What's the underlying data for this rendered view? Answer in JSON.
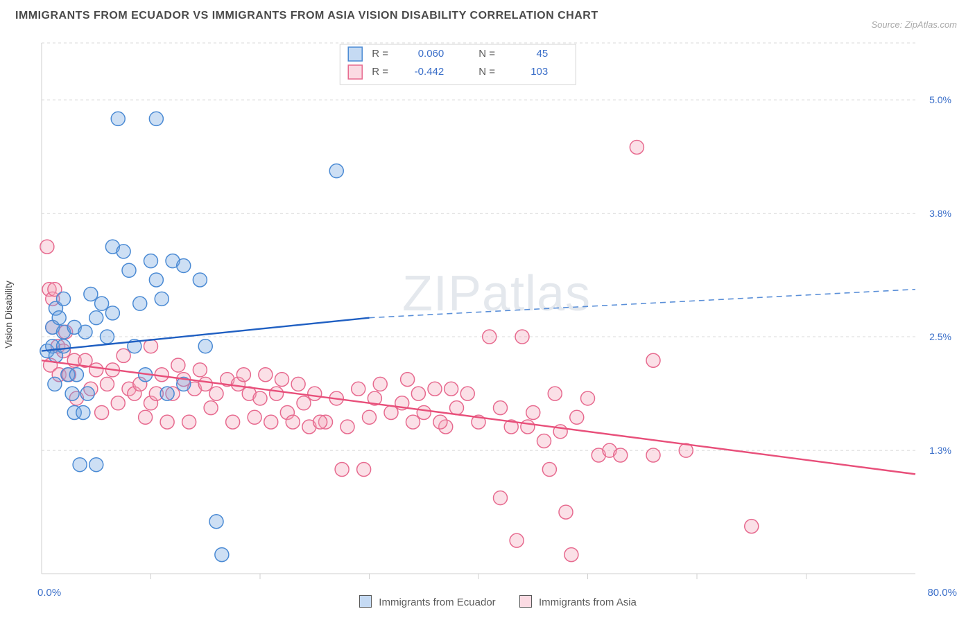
{
  "title": "IMMIGRANTS FROM ECUADOR VS IMMIGRANTS FROM ASIA VISION DISABILITY CORRELATION CHART",
  "source_label": "Source: ZipAtlas.com",
  "ylabel": "Vision Disability",
  "watermark": "ZIPatlas",
  "chart": {
    "type": "scatter",
    "xlim": [
      0,
      80
    ],
    "ylim": [
      0,
      5.6
    ],
    "xtick_min_label": "0.0%",
    "xtick_max_label": "80.0%",
    "xticks_major": [
      10,
      20,
      30,
      40,
      50,
      60,
      70
    ],
    "yticks": [
      {
        "v": 1.3,
        "label": "1.3%"
      },
      {
        "v": 2.5,
        "label": "2.5%"
      },
      {
        "v": 3.8,
        "label": "3.8%"
      },
      {
        "v": 5.0,
        "label": "5.0%"
      }
    ],
    "marker_radius": 10,
    "background_color": "#ffffff",
    "grid_color": "#d8d8d8"
  },
  "stats_legend": {
    "rows": [
      {
        "color": "blue",
        "r_label": "R =",
        "r": "0.060",
        "n_label": "N =",
        "n": "45"
      },
      {
        "color": "pink",
        "r_label": "R =",
        "r": "-0.442",
        "n_label": "N =",
        "n": "103"
      }
    ]
  },
  "series": {
    "s1": {
      "name": "Immigrants from Ecuador",
      "color_fill": "#6fa3e0",
      "color_stroke": "#4a8ad4",
      "trend": {
        "x1": 0,
        "y1": 2.35,
        "x_break": 30,
        "y_break": 2.7,
        "x2": 80,
        "y2": 3.0
      },
      "points": [
        [
          0.5,
          2.35
        ],
        [
          1.0,
          2.6
        ],
        [
          1.0,
          2.4
        ],
        [
          1.2,
          2.0
        ],
        [
          1.3,
          2.8
        ],
        [
          1.3,
          2.3
        ],
        [
          1.6,
          2.7
        ],
        [
          2.0,
          2.4
        ],
        [
          2.0,
          2.55
        ],
        [
          3.0,
          2.6
        ],
        [
          2.4,
          2.1
        ],
        [
          2.8,
          1.9
        ],
        [
          3.2,
          2.1
        ],
        [
          3.0,
          1.7
        ],
        [
          3.8,
          1.7
        ],
        [
          4.2,
          1.9
        ],
        [
          5.0,
          2.7
        ],
        [
          6.0,
          2.5
        ],
        [
          6.5,
          3.45
        ],
        [
          7.5,
          3.4
        ],
        [
          7.0,
          4.8
        ],
        [
          10.5,
          4.8
        ],
        [
          8.0,
          3.2
        ],
        [
          9.0,
          2.85
        ],
        [
          10.0,
          3.3
        ],
        [
          10.5,
          3.1
        ],
        [
          12.0,
          3.3
        ],
        [
          11.0,
          2.9
        ],
        [
          11.5,
          1.9
        ],
        [
          13.0,
          2.0
        ],
        [
          13.0,
          3.25
        ],
        [
          14.5,
          3.1
        ],
        [
          15.0,
          2.4
        ],
        [
          16.0,
          0.55
        ],
        [
          16.5,
          0.2
        ],
        [
          3.5,
          1.15
        ],
        [
          5.0,
          1.15
        ],
        [
          27.0,
          4.25
        ],
        [
          4.5,
          2.95
        ],
        [
          5.5,
          2.85
        ],
        [
          8.5,
          2.4
        ],
        [
          9.5,
          2.1
        ],
        [
          2.0,
          2.9
        ],
        [
          4.0,
          2.55
        ],
        [
          6.5,
          2.75
        ]
      ]
    },
    "s2": {
      "name": "Immigrants from Asia",
      "color_fill": "#f4a6b9",
      "color_stroke": "#e76a8f",
      "trend": {
        "x1": 0,
        "y1": 2.25,
        "x2": 80,
        "y2": 1.05
      },
      "points": [
        [
          0.5,
          3.45
        ],
        [
          0.7,
          3.0
        ],
        [
          1.0,
          2.9
        ],
        [
          1.0,
          2.6
        ],
        [
          1.5,
          2.4
        ],
        [
          0.8,
          2.2
        ],
        [
          1.6,
          2.1
        ],
        [
          2.0,
          2.35
        ],
        [
          2.5,
          2.1
        ],
        [
          3.0,
          2.25
        ],
        [
          4.0,
          2.25
        ],
        [
          5.0,
          2.15
        ],
        [
          4.5,
          1.95
        ],
        [
          6.0,
          2.0
        ],
        [
          7.0,
          1.8
        ],
        [
          8.0,
          1.95
        ],
        [
          8.5,
          1.9
        ],
        [
          9.0,
          2.0
        ],
        [
          10.0,
          1.8
        ],
        [
          10.5,
          1.9
        ],
        [
          11.0,
          2.1
        ],
        [
          12.0,
          1.9
        ],
        [
          13.0,
          2.05
        ],
        [
          14.0,
          1.95
        ],
        [
          15.0,
          2.0
        ],
        [
          16.0,
          1.9
        ],
        [
          17.0,
          2.05
        ],
        [
          18.0,
          2.0
        ],
        [
          19.0,
          1.9
        ],
        [
          20.0,
          1.85
        ],
        [
          21.0,
          1.6
        ],
        [
          22.0,
          2.05
        ],
        [
          22.5,
          1.7
        ],
        [
          23.0,
          1.6
        ],
        [
          24.0,
          1.8
        ],
        [
          25.0,
          1.9
        ],
        [
          26.0,
          1.6
        ],
        [
          27.0,
          1.85
        ],
        [
          28.0,
          1.55
        ],
        [
          29.0,
          1.95
        ],
        [
          30.0,
          1.65
        ],
        [
          30.5,
          1.85
        ],
        [
          31.0,
          2.0
        ],
        [
          32.0,
          1.7
        ],
        [
          33.0,
          1.8
        ],
        [
          34.0,
          1.6
        ],
        [
          35.0,
          1.7
        ],
        [
          36.0,
          1.95
        ],
        [
          37.0,
          1.55
        ],
        [
          38.0,
          1.75
        ],
        [
          39.0,
          1.9
        ],
        [
          40.0,
          1.6
        ],
        [
          41.0,
          2.5
        ],
        [
          42.0,
          1.75
        ],
        [
          43.0,
          1.55
        ],
        [
          44.0,
          2.5
        ],
        [
          45.0,
          1.7
        ],
        [
          46.0,
          1.4
        ],
        [
          47.0,
          1.9
        ],
        [
          47.5,
          1.5
        ],
        [
          48.0,
          0.65
        ],
        [
          49.0,
          1.65
        ],
        [
          50.0,
          1.85
        ],
        [
          51.0,
          1.25
        ],
        [
          52.0,
          1.3
        ],
        [
          53.0,
          1.25
        ],
        [
          56.0,
          2.25
        ],
        [
          42.0,
          0.8
        ],
        [
          43.5,
          0.35
        ],
        [
          48.5,
          0.2
        ],
        [
          54.5,
          4.5
        ],
        [
          56.0,
          1.25
        ],
        [
          59.0,
          1.3
        ],
        [
          65.0,
          0.5
        ],
        [
          7.5,
          2.3
        ],
        [
          9.5,
          1.65
        ],
        [
          11.5,
          1.6
        ],
        [
          12.5,
          2.2
        ],
        [
          13.5,
          1.6
        ],
        [
          14.5,
          2.15
        ],
        [
          15.5,
          1.75
        ],
        [
          17.5,
          1.6
        ],
        [
          18.5,
          2.1
        ],
        [
          19.5,
          1.65
        ],
        [
          20.5,
          2.1
        ],
        [
          21.5,
          1.9
        ],
        [
          5.5,
          1.7
        ],
        [
          6.5,
          2.15
        ],
        [
          3.2,
          1.85
        ],
        [
          2.2,
          2.55
        ],
        [
          1.2,
          3.0
        ],
        [
          10.0,
          2.4
        ],
        [
          33.5,
          2.05
        ],
        [
          34.5,
          1.9
        ],
        [
          36.5,
          1.6
        ],
        [
          37.5,
          1.95
        ],
        [
          44.5,
          1.55
        ],
        [
          27.5,
          1.1
        ],
        [
          29.5,
          1.1
        ],
        [
          23.5,
          2.0
        ],
        [
          24.5,
          1.55
        ],
        [
          25.5,
          1.6
        ],
        [
          46.5,
          1.1
        ]
      ]
    }
  },
  "bottom_legend": {
    "s1_label": "Immigrants from Ecuador",
    "s2_label": "Immigrants from Asia"
  }
}
